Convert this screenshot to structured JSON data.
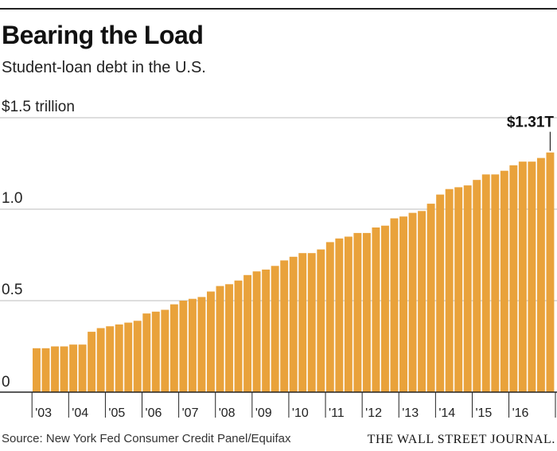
{
  "header": {
    "title": "Bearing the Load",
    "subtitle": "Student-loan debt in the U.S."
  },
  "footer": {
    "source": "Source: New York Fed Consumer Credit Panel/Equifax",
    "brand": "THE WALL STREET JOURNAL."
  },
  "colors": {
    "bar": "#E9A23B",
    "gridline": "#bdbdbd",
    "axis": "#222222"
  },
  "chart_data": {
    "type": "bar",
    "ylim": [
      0,
      1.5
    ],
    "yticks": [
      {
        "value": 0,
        "label": "0"
      },
      {
        "value": 0.5,
        "label": "0.5"
      },
      {
        "value": 1.0,
        "label": "1.0"
      },
      {
        "value": 1.5,
        "label": "$1.5 trillion"
      }
    ],
    "grid": true,
    "x_tick_labels": [
      "'03",
      "'04",
      "'05",
      "'06",
      "'07",
      "'08",
      "'09",
      "'10",
      "'11",
      "'12",
      "'13",
      "'14",
      "'15",
      "'16"
    ],
    "values": [
      0.24,
      0.24,
      0.25,
      0.25,
      0.26,
      0.26,
      0.33,
      0.35,
      0.36,
      0.37,
      0.38,
      0.39,
      0.43,
      0.44,
      0.45,
      0.48,
      0.5,
      0.51,
      0.52,
      0.55,
      0.58,
      0.59,
      0.61,
      0.64,
      0.66,
      0.67,
      0.69,
      0.72,
      0.74,
      0.76,
      0.76,
      0.78,
      0.82,
      0.84,
      0.85,
      0.87,
      0.87,
      0.9,
      0.91,
      0.95,
      0.96,
      0.98,
      0.99,
      1.03,
      1.08,
      1.11,
      1.12,
      1.13,
      1.16,
      1.19,
      1.19,
      1.21,
      1.24,
      1.26,
      1.26,
      1.28,
      1.31
    ],
    "annotation": {
      "label": "$1.31T",
      "value": 1.31
    }
  }
}
